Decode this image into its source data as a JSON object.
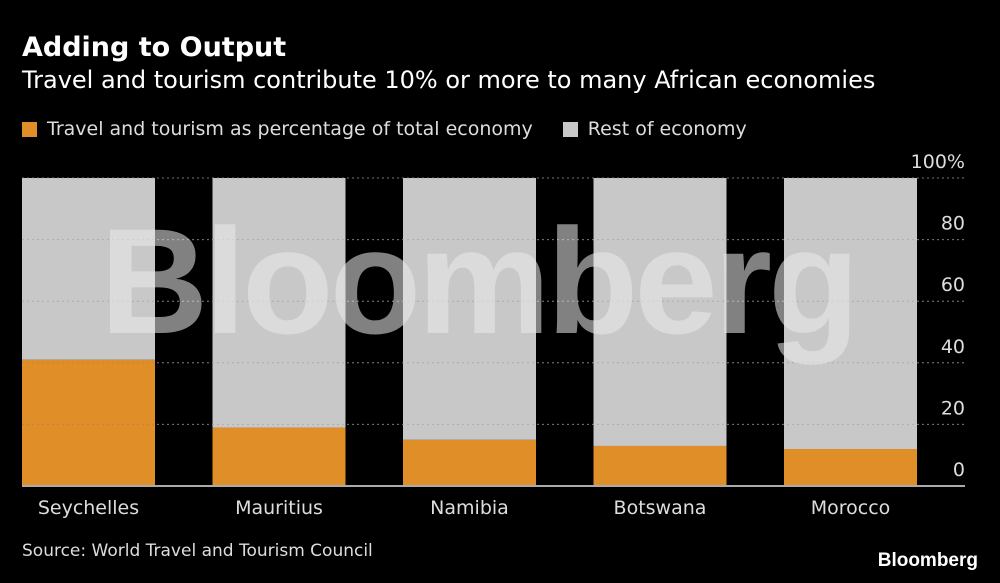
{
  "title": "Adding to Output",
  "subtitle": "Travel and tourism contribute 10% or more to many African economies",
  "source": "Source: World Travel and Tourism Council",
  "logo": "Bloomberg",
  "watermark": "Bloomberg",
  "chart_data": {
    "type": "bar",
    "stacked": true,
    "categories": [
      "Seychelles",
      "Mauritius",
      "Namibia",
      "Botswana",
      "Morocco"
    ],
    "series": [
      {
        "name": "Travel and tourism as percentage of total economy",
        "color": "#e08e27",
        "values": [
          41,
          19,
          15,
          13,
          12
        ]
      },
      {
        "name": "Rest of economy",
        "color": "#c8c8c8",
        "values": [
          59,
          81,
          85,
          87,
          88
        ]
      }
    ],
    "yticks": [
      "0",
      "20",
      "40",
      "60",
      "80",
      "100%"
    ],
    "ylim": [
      0,
      100
    ],
    "y_axis_position": "right",
    "grid": true,
    "legend": "top-left"
  }
}
